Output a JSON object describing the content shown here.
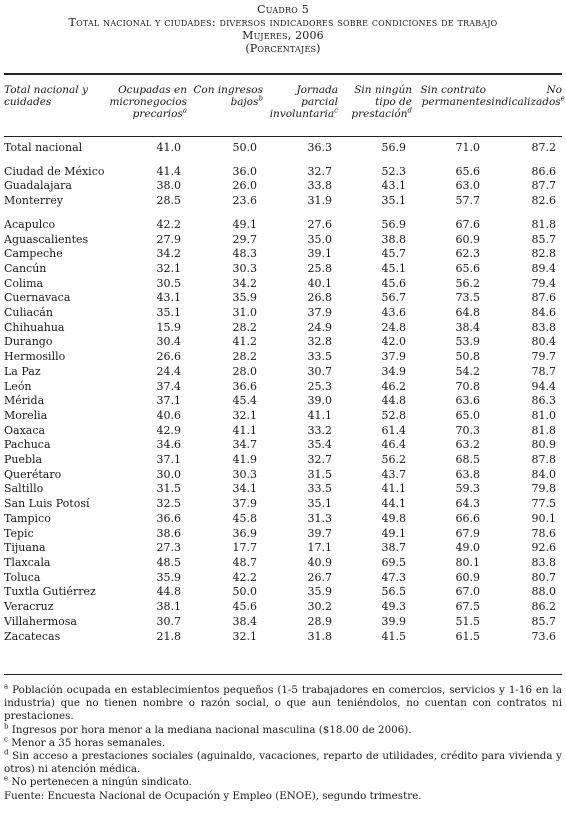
{
  "title": {
    "line1": "Cuadro 5",
    "line2": "Total nacional y ciudades: diversos indicadores sobre condiciones de trabajo",
    "line3": "Mujeres, 2006",
    "line4": "(Porcentajes)"
  },
  "columns": [
    {
      "label": "Total nacional y cuidades",
      "sup": ""
    },
    {
      "label": "Ocupadas en micronegocios precarios",
      "sup": "a"
    },
    {
      "label": "Con ingresos bajos",
      "sup": "b"
    },
    {
      "label": "Jornada parcial involuntaria",
      "sup": "c"
    },
    {
      "label": "Sin ningún tipo de prestación",
      "sup": "d"
    },
    {
      "label": "Sin contrato permanente",
      "sup": ""
    },
    {
      "label": "No sindicalizados",
      "sup": "e"
    }
  ],
  "rows": [
    {
      "name": "Total nacional",
      "values": [
        "41.0",
        "50.0",
        "36.3",
        "56.9",
        "71.0",
        "87.2"
      ]
    },
    {
      "name": "Ciudad de México",
      "values": [
        "41.4",
        "36.0",
        "32.7",
        "52.3",
        "65.6",
        "86.6"
      ]
    },
    {
      "name": "Guadalajara",
      "values": [
        "38.0",
        "26.0",
        "33.8",
        "43.1",
        "63.0",
        "87.7"
      ]
    },
    {
      "name": "Monterrey",
      "values": [
        "28.5",
        "23.6",
        "31.9",
        "35.1",
        "57.7",
        "82.6"
      ]
    },
    {
      "name": "Acapulco",
      "values": [
        "42.2",
        "49.1",
        "27.6",
        "56.9",
        "67.6",
        "81.8"
      ]
    },
    {
      "name": "Aguascalientes",
      "values": [
        "27.9",
        "29.7",
        "35.0",
        "38.8",
        "60.9",
        "85.7"
      ]
    },
    {
      "name": "Campeche",
      "values": [
        "34.2",
        "48.3",
        "39.1",
        "45.7",
        "62.3",
        "82.8"
      ]
    },
    {
      "name": "Cancún",
      "values": [
        "32.1",
        "30.3",
        "25.8",
        "45.1",
        "65.6",
        "89.4"
      ]
    },
    {
      "name": "Colima",
      "values": [
        "30.5",
        "34.2",
        "40.1",
        "45.6",
        "56.2",
        "79.4"
      ]
    },
    {
      "name": "Cuernavaca",
      "values": [
        "43.1",
        "35.9",
        "26.8",
        "56.7",
        "73.5",
        "87.6"
      ]
    },
    {
      "name": "Culiacán",
      "values": [
        "35.1",
        "31.0",
        "37.9",
        "43.6",
        "64.8",
        "84.6"
      ]
    },
    {
      "name": "Chihuahua",
      "values": [
        "15.9",
        "28.2",
        "24.9",
        "24.8",
        "38.4",
        "83.8"
      ]
    },
    {
      "name": "Durango",
      "values": [
        "30.4",
        "41.2",
        "32.8",
        "42.0",
        "53.9",
        "80.4"
      ]
    },
    {
      "name": "Hermosillo",
      "values": [
        "26.6",
        "28.2",
        "33.5",
        "37.9",
        "50.8",
        "79.7"
      ]
    },
    {
      "name": "La Paz",
      "values": [
        "24.4",
        "28.0",
        "30.7",
        "34.9",
        "54.2",
        "78.7"
      ]
    },
    {
      "name": "León",
      "values": [
        "37.4",
        "36.6",
        "25.3",
        "46.2",
        "70.8",
        "94.4"
      ]
    },
    {
      "name": "Mérida",
      "values": [
        "37.1",
        "45.4",
        "39.0",
        "44.8",
        "63.6",
        "86.3"
      ]
    },
    {
      "name": "Morelia",
      "values": [
        "40.6",
        "32.1",
        "41.1",
        "52.8",
        "65.0",
        "81.0"
      ]
    },
    {
      "name": "Oaxaca",
      "values": [
        "42.9",
        "41.1",
        "33.2",
        "61.4",
        "70.3",
        "81.8"
      ]
    },
    {
      "name": "Pachuca",
      "values": [
        "34.6",
        "34.7",
        "35.4",
        "46.4",
        "63.2",
        "80.9"
      ]
    },
    {
      "name": "Puebla",
      "values": [
        "37.1",
        "41.9",
        "32.7",
        "56.2",
        "68.5",
        "87.8"
      ]
    },
    {
      "name": "Querétaro",
      "values": [
        "30.0",
        "30.3",
        "31.5",
        "43.7",
        "63.8",
        "84.0"
      ]
    },
    {
      "name": "Saltillo",
      "values": [
        "31.5",
        "34.1",
        "33.5",
        "41.1",
        "59.3",
        "79.8"
      ]
    },
    {
      "name": "San Luis Potosí",
      "values": [
        "32.5",
        "37.9",
        "35.1",
        "44.1",
        "64.3",
        "77.5"
      ]
    },
    {
      "name": "Tampico",
      "values": [
        "36.6",
        "45.8",
        "31.3",
        "49.8",
        "66.6",
        "90.1"
      ]
    },
    {
      "name": "Tepic",
      "values": [
        "38.6",
        "36.9",
        "39.7",
        "49.1",
        "67.9",
        "78.6"
      ]
    },
    {
      "name": "Tijuana",
      "values": [
        "27.3",
        "17.7",
        "17.1",
        "38.7",
        "49.0",
        "92.6"
      ]
    },
    {
      "name": "Tlaxcala",
      "values": [
        "48.5",
        "48.7",
        "40.9",
        "69.5",
        "80.1",
        "83.8"
      ]
    },
    {
      "name": "Toluca",
      "values": [
        "35.9",
        "42.2",
        "26.7",
        "47.3",
        "60.9",
        "80.7"
      ]
    },
    {
      "name": "Tuxtla Gutiérrez",
      "values": [
        "44.8",
        "50.0",
        "35.9",
        "56.5",
        "67.0",
        "88.0"
      ]
    },
    {
      "name": "Veracruz",
      "values": [
        "38.1",
        "45.6",
        "30.2",
        "49.3",
        "67.5",
        "86.2"
      ]
    },
    {
      "name": "Villahermosa",
      "values": [
        "30.7",
        "38.4",
        "28.9",
        "39.9",
        "51.5",
        "85.7"
      ]
    },
    {
      "name": "Zacatecas",
      "values": [
        "21.8",
        "32.1",
        "31.8",
        "41.5",
        "61.5",
        "73.6"
      ]
    }
  ],
  "notes": [
    {
      "mark": "a",
      "text": " Población ocupada en establecimientos pequeños (1-5 trabajadores en comercios, servicios y 1-16 en la industria) que no tienen nombre o razón social, o que aun teniéndolos, no cuentan con contratos ni prestaciones."
    },
    {
      "mark": "b",
      "text": " Ingresos por hora menor a la mediana nacional masculina ($18.00 de 2006)."
    },
    {
      "mark": "c",
      "text": " Menor a 35 horas semanales."
    },
    {
      "mark": "d",
      "text": " Sin acceso a prestaciones sociales (aguinaldo, vacaciones, reparto de utilidades, crédito para vivienda y otros) ni atención médica."
    },
    {
      "mark": "e",
      "text": " No pertenecen a ningún sindicato."
    }
  ],
  "source": "Fuente: Encuesta Nacional de Ocupación y Empleo (ENOE), segundo trimestre."
}
